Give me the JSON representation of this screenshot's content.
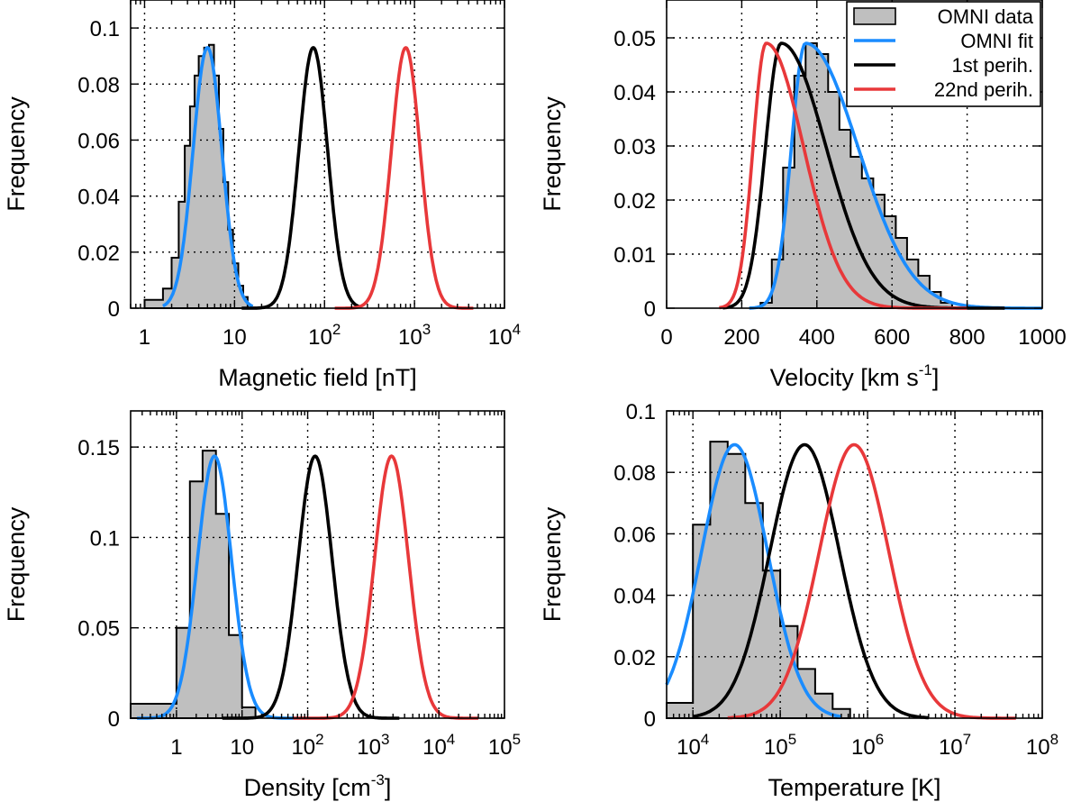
{
  "colors": {
    "omni_data": "#bfbfbf",
    "omni_fit": "#1a8cff",
    "first_perihelion": "#000000",
    "twentysecond_perihelion": "#e8383a"
  },
  "chart_data": [
    {
      "id": "magnetic",
      "type": "histogram+line",
      "x_scale": "log",
      "xlabel": "Magnetic field [nT]",
      "ylabel": "Frequency",
      "xlim": [
        0.7,
        10000
      ],
      "ylim": [
        0,
        0.11
      ],
      "x_ticks": [
        {
          "v": 1,
          "base": "1",
          "exp": ""
        },
        {
          "v": 10,
          "base": "10",
          "exp": ""
        },
        {
          "v": 100,
          "base": "10",
          "exp": "2"
        },
        {
          "v": 1000,
          "base": "10",
          "exp": "3"
        },
        {
          "v": 10000,
          "base": "10",
          "exp": "4"
        }
      ],
      "y_ticks": [
        {
          "v": 0,
          "label": "0"
        },
        {
          "v": 0.02,
          "label": "0.02"
        },
        {
          "v": 0.04,
          "label": "0.04"
        },
        {
          "v": 0.06,
          "label": "0.06"
        },
        {
          "v": 0.08,
          "label": "0.08"
        },
        {
          "v": 0.1,
          "label": "0.1"
        }
      ],
      "histogram": {
        "edges": [
          1,
          1.6,
          2,
          2.4,
          2.8,
          3.2,
          3.6,
          4.0,
          4.6,
          5.2,
          5.9,
          6.7,
          7.5,
          8.5,
          9.6,
          11,
          12.5,
          14
        ],
        "values": [
          0.003,
          0.007,
          0.018,
          0.038,
          0.058,
          0.072,
          0.083,
          0.09,
          0.093,
          0.094,
          0.083,
          0.064,
          0.045,
          0.028,
          0.016,
          0.008,
          0.004
        ]
      },
      "curves": [
        {
          "name": "OMNI fit",
          "color": "#1a8cff",
          "peak_x": 5,
          "peak_y": 0.093,
          "sigma_log10": 0.16,
          "range": [
            1.6,
            16
          ]
        },
        {
          "name": "1st perih.",
          "color": "#000000",
          "peak_x": 75,
          "peak_y": 0.093,
          "sigma_log10": 0.16,
          "range": [
            12,
            250
          ]
        },
        {
          "name": "22nd perih.",
          "color": "#e8383a",
          "peak_x": 800,
          "peak_y": 0.093,
          "sigma_log10": 0.16,
          "range": [
            130,
            4500
          ]
        }
      ]
    },
    {
      "id": "velocity",
      "type": "histogram+line",
      "x_scale": "linear",
      "xlabel": "Velocity [km s",
      "xlabel_sup": "-1",
      "xlabel_end": "]",
      "ylabel": "Frequency",
      "xlim": [
        0,
        1000
      ],
      "ylim": [
        0,
        0.057
      ],
      "x_ticks": [
        {
          "v": 0,
          "label": "0"
        },
        {
          "v": 200,
          "label": "200"
        },
        {
          "v": 400,
          "label": "400"
        },
        {
          "v": 600,
          "label": "600"
        },
        {
          "v": 800,
          "label": "800"
        },
        {
          "v": 1000,
          "label": "1000"
        }
      ],
      "y_ticks": [
        {
          "v": 0,
          "label": "0"
        },
        {
          "v": 0.01,
          "label": "0.01"
        },
        {
          "v": 0.02,
          "label": "0.02"
        },
        {
          "v": 0.03,
          "label": "0.03"
        },
        {
          "v": 0.04,
          "label": "0.04"
        },
        {
          "v": 0.05,
          "label": "0.05"
        }
      ],
      "histogram": {
        "edges": [
          250,
          280,
          310,
          340,
          370,
          400,
          430,
          460,
          490,
          520,
          550,
          580,
          610,
          640,
          670,
          700,
          730,
          760
        ],
        "values": [
          0.001,
          0.009,
          0.026,
          0.043,
          0.049,
          0.047,
          0.04,
          0.033,
          0.028,
          0.024,
          0.021,
          0.017,
          0.013,
          0.009,
          0.006,
          0.003,
          0.001
        ]
      },
      "curves": [
        {
          "name": "OMNI fit",
          "color": "#1a8cff",
          "peak_x": 370,
          "peak_y": 0.049,
          "sigma_left": 38,
          "sigma_right": 140,
          "range": [
            220,
            1000
          ]
        },
        {
          "name": "1st perih.",
          "color": "#000000",
          "peak_x": 305,
          "peak_y": 0.049,
          "sigma_left": 42,
          "sigma_right": 120,
          "range": [
            150,
            900
          ]
        },
        {
          "name": "22nd perih.",
          "color": "#e8383a",
          "peak_x": 265,
          "peak_y": 0.049,
          "sigma_left": 35,
          "sigma_right": 100,
          "range": [
            140,
            800
          ]
        }
      ],
      "legend": {
        "placement": "top-right",
        "entries": [
          {
            "label": "OMNI data",
            "kind": "box",
            "color": "#bfbfbf"
          },
          {
            "label": "OMNI fit",
            "kind": "line",
            "color": "#1a8cff"
          },
          {
            "label": "1st perih.",
            "kind": "line",
            "color": "#000000"
          },
          {
            "label": "22nd perih.",
            "kind": "line",
            "color": "#e8383a"
          }
        ]
      }
    },
    {
      "id": "density",
      "type": "histogram+line",
      "x_scale": "log",
      "xlabel": "Density [cm",
      "xlabel_sup": "-3",
      "xlabel_end": "]",
      "ylabel": "Frequency",
      "xlim": [
        0.2,
        100000
      ],
      "ylim": [
        0,
        0.17
      ],
      "x_ticks": [
        {
          "v": 1,
          "base": "1",
          "exp": ""
        },
        {
          "v": 10,
          "base": "10",
          "exp": ""
        },
        {
          "v": 100,
          "base": "10",
          "exp": "2"
        },
        {
          "v": 1000,
          "base": "10",
          "exp": "3"
        },
        {
          "v": 10000,
          "base": "10",
          "exp": "4"
        },
        {
          "v": 100000,
          "base": "10",
          "exp": "5"
        }
      ],
      "y_ticks": [
        {
          "v": 0,
          "label": "0"
        },
        {
          "v": 0.05,
          "label": "0.05"
        },
        {
          "v": 0.1,
          "label": "0.1"
        },
        {
          "v": 0.15,
          "label": "0.15"
        }
      ],
      "histogram": {
        "edges": [
          0.2,
          1,
          1.6,
          2.5,
          4,
          6.3,
          10,
          16
        ],
        "values": [
          0.008,
          0.05,
          0.131,
          0.148,
          0.113,
          0.046,
          0.006
        ]
      },
      "curves": [
        {
          "name": "OMNI fit",
          "color": "#1a8cff",
          "peak_x": 3.8,
          "peak_y": 0.145,
          "sigma_log10": 0.26,
          "range": [
            0.25,
            60
          ]
        },
        {
          "name": "1st perih.",
          "color": "#000000",
          "peak_x": 130,
          "peak_y": 0.145,
          "sigma_log10": 0.26,
          "range": [
            5,
            2500
          ]
        },
        {
          "name": "22nd perih.",
          "color": "#e8383a",
          "peak_x": 1900,
          "peak_y": 0.145,
          "sigma_log10": 0.26,
          "range": [
            60,
            40000
          ]
        }
      ]
    },
    {
      "id": "temperature",
      "type": "histogram+line",
      "x_scale": "log",
      "xlabel": "Temperature [K]",
      "ylabel": "Frequency",
      "xlim": [
        5000,
        100000000
      ],
      "ylim": [
        0,
        0.1
      ],
      "x_ticks": [
        {
          "v": 10000,
          "base": "10",
          "exp": "4"
        },
        {
          "v": 100000,
          "base": "10",
          "exp": "5"
        },
        {
          "v": 1000000,
          "base": "10",
          "exp": "6"
        },
        {
          "v": 10000000,
          "base": "10",
          "exp": "7"
        },
        {
          "v": 100000000,
          "base": "10",
          "exp": "8"
        }
      ],
      "y_ticks": [
        {
          "v": 0,
          "label": "0"
        },
        {
          "v": 0.02,
          "label": "0.02"
        },
        {
          "v": 0.04,
          "label": "0.04"
        },
        {
          "v": 0.06,
          "label": "0.06"
        },
        {
          "v": 0.08,
          "label": "0.08"
        },
        {
          "v": 0.1,
          "label": "0.1"
        }
      ],
      "histogram": {
        "edges": [
          5000,
          10000,
          15800,
          25000,
          39800,
          63100,
          100000,
          158000,
          251000,
          398000,
          631000
        ],
        "values": [
          0.005,
          0.063,
          0.09,
          0.086,
          0.07,
          0.048,
          0.03,
          0.016,
          0.008,
          0.003
        ]
      },
      "curves": [
        {
          "name": "OMNI fit",
          "color": "#1a8cff",
          "peak_x": 30000,
          "peak_y": 0.089,
          "sigma_log10": 0.38,
          "range": [
            5000,
            500000
          ]
        },
        {
          "name": "1st perih.",
          "color": "#000000",
          "peak_x": 190000,
          "peak_y": 0.089,
          "sigma_log10": 0.4,
          "range": [
            10000,
            5000000
          ]
        },
        {
          "name": "22nd perih.",
          "color": "#e8383a",
          "peak_x": 700000,
          "peak_y": 0.089,
          "sigma_log10": 0.4,
          "range": [
            25000,
            50000000
          ]
        }
      ]
    }
  ]
}
